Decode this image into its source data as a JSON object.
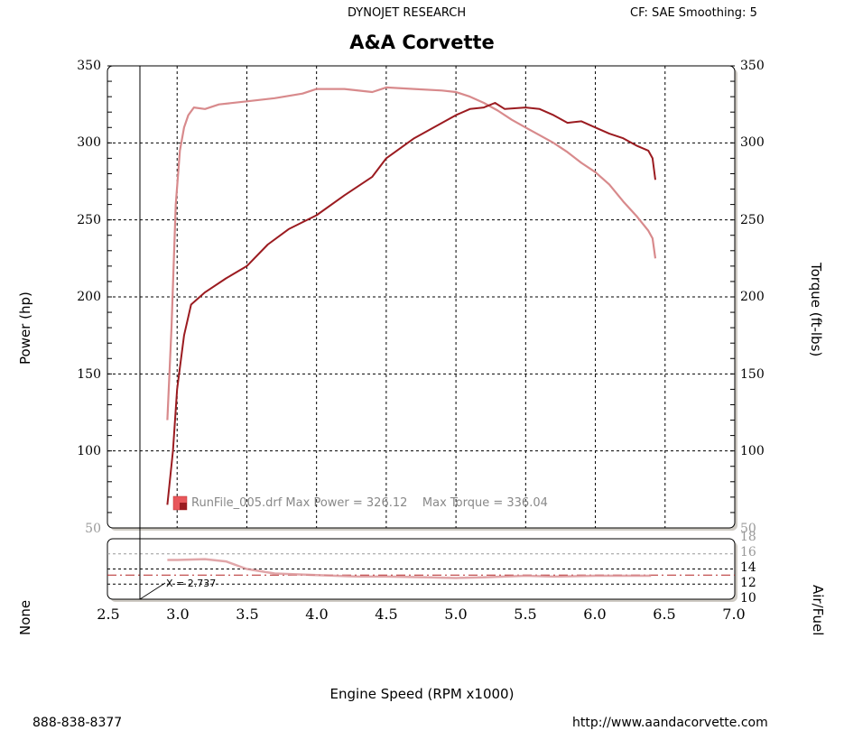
{
  "header": {
    "company": "DYNOJET RESEARCH",
    "settings": "CF: SAE  Smoothing: 5",
    "title": "A&A Corvette"
  },
  "axes": {
    "left_label": "Power (hp)",
    "right_label": "Torque (ft-lbs)",
    "lower_left_label": "None",
    "lower_right_label": "Air/Fuel",
    "x_label": "Engine Speed (RPM x1000)",
    "y_ticks": [
      "350",
      "300",
      "250",
      "200",
      "150",
      "100",
      "50"
    ],
    "x_ticks": [
      "2.5",
      "3.0",
      "3.5",
      "4.0",
      "4.5",
      "5.0",
      "5.5",
      "6.0",
      "6.5",
      "7.0"
    ],
    "af_ticks": [
      "18",
      "16",
      "14",
      "12",
      "10"
    ]
  },
  "legend": {
    "text": "RunFile_005.drf Max Power = 326.12    Max Torque = 336.04"
  },
  "cursor": {
    "label": "X = 2.737"
  },
  "footer": {
    "phone": "888-838-8377",
    "url": "http://www.aandacorvette.com"
  },
  "colors": {
    "power": "#9b1b20",
    "torque": "#d88a8c",
    "af": "#d99093",
    "af_ref": "#b22222",
    "grid": "#000000",
    "frame_shadow": "#c8c4bc"
  },
  "chart_data": [
    {
      "type": "line",
      "title": "A&A Corvette",
      "subtitle": "DYNOJET RESEARCH — CF: SAE  Smoothing: 5",
      "xlabel": "Engine Speed (RPM x1000)",
      "ylabel": "Power (hp)",
      "y2label": "Torque (ft-lbs)",
      "xlim": [
        2.5,
        7.0
      ],
      "ylim": [
        50,
        350
      ],
      "grid": true,
      "legend": "RunFile_005.drf Max Power = 326.12    Max Torque = 336.04",
      "series": [
        {
          "name": "Power (hp)",
          "x": [
            2.93,
            2.97,
            3.0,
            3.05,
            3.1,
            3.2,
            3.35,
            3.5,
            3.65,
            3.8,
            4.0,
            4.2,
            4.4,
            4.5,
            4.7,
            4.9,
            5.0,
            5.1,
            5.2,
            5.28,
            5.35,
            5.5,
            5.6,
            5.7,
            5.8,
            5.9,
            6.0,
            6.1,
            6.2,
            6.3,
            6.38,
            6.41,
            6.43
          ],
          "values": [
            65,
            100,
            140,
            175,
            195,
            203,
            212,
            220,
            234,
            244,
            253,
            266,
            278,
            290,
            303,
            313,
            318,
            322,
            323,
            326,
            322,
            323,
            322,
            318,
            313,
            314,
            310,
            306,
            303,
            298,
            295,
            290,
            276
          ]
        },
        {
          "name": "Torque (ft-lbs)",
          "x": [
            2.93,
            2.96,
            2.99,
            3.02,
            3.05,
            3.08,
            3.12,
            3.2,
            3.3,
            3.5,
            3.7,
            3.9,
            4.0,
            4.2,
            4.4,
            4.5,
            4.7,
            4.9,
            5.0,
            5.1,
            5.2,
            5.3,
            5.4,
            5.5,
            5.6,
            5.7,
            5.8,
            5.9,
            6.0,
            6.1,
            6.2,
            6.3,
            6.38,
            6.41,
            6.43
          ],
          "values": [
            120,
            180,
            260,
            295,
            310,
            318,
            323,
            322,
            325,
            327,
            329,
            332,
            335,
            335,
            333,
            336,
            335,
            334,
            333,
            330,
            326,
            321,
            315,
            310,
            305,
            300,
            294,
            287,
            281,
            273,
            262,
            252,
            243,
            238,
            225
          ]
        }
      ]
    },
    {
      "type": "line",
      "title": "Air/Fuel",
      "xlabel": "Engine Speed (RPM x1000)",
      "ylabel": "Air/Fuel",
      "xlim": [
        2.5,
        7.0
      ],
      "ylim": [
        10,
        18
      ],
      "grid": true,
      "reference_line": 13.2,
      "cursor_x": 2.737,
      "series": [
        {
          "name": "Air/Fuel",
          "x": [
            2.93,
            3.0,
            3.2,
            3.35,
            3.5,
            3.7,
            4.0,
            4.3,
            4.5,
            4.8,
            5.0,
            5.2,
            5.5,
            5.7,
            6.0,
            6.2,
            6.4
          ],
          "values": [
            15.2,
            15.2,
            15.3,
            15.0,
            14.0,
            13.4,
            13.2,
            13.0,
            13.0,
            12.9,
            12.8,
            12.9,
            13.1,
            13.0,
            13.1,
            13.1,
            13.1
          ]
        }
      ]
    }
  ]
}
